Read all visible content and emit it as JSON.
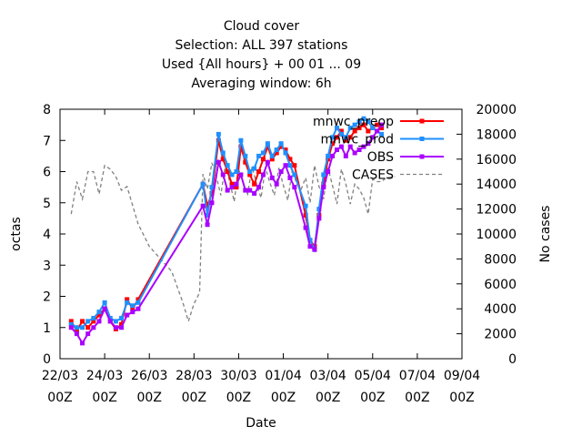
{
  "chart_data": {
    "type": "line",
    "title_lines": [
      "Cloud cover",
      "Selection: ALL    397 stations",
      "Used {All hours} + 00 01 ... 09",
      "Averaging window:  6h"
    ],
    "xlabel": "Date",
    "ylabel": "octas",
    "y2label": "No cases",
    "xlim": [
      0,
      18
    ],
    "ylim": [
      0,
      8
    ],
    "y2lim": [
      0,
      20000
    ],
    "x_ticks": [
      {
        "x": 0,
        "line1": "22/03",
        "line2": "00Z"
      },
      {
        "x": 2,
        "line1": "24/03",
        "line2": "00Z"
      },
      {
        "x": 4,
        "line1": "26/03",
        "line2": "00Z"
      },
      {
        "x": 6,
        "line1": "28/03",
        "line2": "00Z"
      },
      {
        "x": 8,
        "line1": "30/03",
        "line2": "00Z"
      },
      {
        "x": 10,
        "line1": "01/04",
        "line2": "00Z"
      },
      {
        "x": 12,
        "line1": "03/04",
        "line2": "00Z"
      },
      {
        "x": 14,
        "line1": "05/04",
        "line2": "00Z"
      },
      {
        "x": 16,
        "line1": "07/04",
        "line2": "00Z"
      },
      {
        "x": 18,
        "line1": "09/04",
        "line2": "00Z"
      }
    ],
    "y_ticks": [
      "0",
      "1",
      "2",
      "3",
      "4",
      "5",
      "6",
      "7",
      "8"
    ],
    "y2_ticks": [
      "0",
      "2000",
      "4000",
      "6000",
      "8000",
      "10000",
      "12000",
      "14000",
      "16000",
      "18000",
      "20000"
    ],
    "legend_position": "top-right",
    "series": [
      {
        "name": "mnwc_preop",
        "color": "#ff0000",
        "axis": "y1",
        "marker": "square",
        "points": [
          [
            0.5,
            1.2
          ],
          [
            0.75,
            0.9
          ],
          [
            1.0,
            1.2
          ],
          [
            1.25,
            1.0
          ],
          [
            1.5,
            1.2
          ],
          [
            1.75,
            1.4
          ],
          [
            2.0,
            1.6
          ],
          [
            2.25,
            1.2
          ],
          [
            2.5,
            0.95
          ],
          [
            2.75,
            1.1
          ],
          [
            3.0,
            1.9
          ],
          [
            3.25,
            1.6
          ],
          [
            3.5,
            1.9
          ],
          [
            6.4,
            5.6
          ],
          [
            6.6,
            4.9
          ],
          [
            6.8,
            5.3
          ],
          [
            7.1,
            7.0
          ],
          [
            7.3,
            6.4
          ],
          [
            7.5,
            6.0
          ],
          [
            7.7,
            5.6
          ],
          [
            7.9,
            5.5
          ],
          [
            8.1,
            6.8
          ],
          [
            8.3,
            6.3
          ],
          [
            8.5,
            5.9
          ],
          [
            8.7,
            5.6
          ],
          [
            8.9,
            6.0
          ],
          [
            9.1,
            6.4
          ],
          [
            9.3,
            6.8
          ],
          [
            9.5,
            6.4
          ],
          [
            9.7,
            6.6
          ],
          [
            9.9,
            6.8
          ],
          [
            10.1,
            6.7
          ],
          [
            10.3,
            6.4
          ],
          [
            10.5,
            6.2
          ],
          [
            11.0,
            4.6
          ],
          [
            11.2,
            3.8
          ],
          [
            11.4,
            3.6
          ],
          [
            11.6,
            4.6
          ],
          [
            11.8,
            5.6
          ],
          [
            12.0,
            6.4
          ],
          [
            12.2,
            6.9
          ],
          [
            12.4,
            7.1
          ],
          [
            12.6,
            7.3
          ],
          [
            12.8,
            7.0
          ],
          [
            13.0,
            7.1
          ],
          [
            13.2,
            7.3
          ],
          [
            13.4,
            7.4
          ],
          [
            13.6,
            7.5
          ],
          [
            13.8,
            7.3
          ],
          [
            14.0,
            7.4
          ],
          [
            14.2,
            7.5
          ],
          [
            14.4,
            7.4
          ]
        ]
      },
      {
        "name": "mnwc_prod",
        "color": "#1e90ff",
        "axis": "y1",
        "marker": "square",
        "points": [
          [
            0.5,
            1.1
          ],
          [
            0.75,
            1.0
          ],
          [
            1.0,
            1.0
          ],
          [
            1.25,
            1.2
          ],
          [
            1.5,
            1.3
          ],
          [
            1.75,
            1.5
          ],
          [
            2.0,
            1.8
          ],
          [
            2.25,
            1.3
          ],
          [
            2.5,
            1.2
          ],
          [
            2.75,
            1.3
          ],
          [
            3.0,
            1.8
          ],
          [
            3.25,
            1.7
          ],
          [
            3.5,
            1.8
          ],
          [
            6.4,
            5.6
          ],
          [
            6.6,
            4.6
          ],
          [
            6.8,
            5.5
          ],
          [
            7.1,
            7.2
          ],
          [
            7.3,
            6.6
          ],
          [
            7.5,
            6.2
          ],
          [
            7.7,
            5.9
          ],
          [
            7.9,
            6.0
          ],
          [
            8.1,
            7.0
          ],
          [
            8.3,
            6.5
          ],
          [
            8.5,
            6.0
          ],
          [
            8.7,
            6.1
          ],
          [
            8.9,
            6.5
          ],
          [
            9.1,
            6.6
          ],
          [
            9.3,
            6.9
          ],
          [
            9.5,
            6.5
          ],
          [
            9.7,
            6.7
          ],
          [
            9.9,
            6.9
          ],
          [
            10.1,
            6.6
          ],
          [
            10.3,
            6.2
          ],
          [
            10.5,
            5.9
          ],
          [
            11.0,
            4.9
          ],
          [
            11.2,
            3.8
          ],
          [
            11.4,
            3.5
          ],
          [
            11.6,
            4.8
          ],
          [
            11.8,
            5.9
          ],
          [
            12.0,
            6.5
          ],
          [
            12.2,
            7.1
          ],
          [
            12.4,
            7.4
          ],
          [
            12.6,
            7.2
          ],
          [
            12.8,
            7.1
          ],
          [
            13.0,
            7.4
          ],
          [
            13.2,
            7.5
          ],
          [
            13.4,
            7.6
          ],
          [
            13.6,
            7.7
          ],
          [
            13.8,
            7.6
          ],
          [
            14.0,
            7.4
          ],
          [
            14.2,
            7.3
          ],
          [
            14.4,
            7.2
          ]
        ]
      },
      {
        "name": "OBS",
        "color": "#aa00ff",
        "axis": "y1",
        "marker": "square",
        "points": [
          [
            0.5,
            1.0
          ],
          [
            0.75,
            0.8
          ],
          [
            1.0,
            0.5
          ],
          [
            1.25,
            0.8
          ],
          [
            1.5,
            1.0
          ],
          [
            1.75,
            1.2
          ],
          [
            2.0,
            1.6
          ],
          [
            2.25,
            1.2
          ],
          [
            2.5,
            1.0
          ],
          [
            2.75,
            1.0
          ],
          [
            3.0,
            1.4
          ],
          [
            3.25,
            1.5
          ],
          [
            3.5,
            1.6
          ],
          [
            6.4,
            4.9
          ],
          [
            6.6,
            4.3
          ],
          [
            6.8,
            5.0
          ],
          [
            7.1,
            6.3
          ],
          [
            7.3,
            5.9
          ],
          [
            7.5,
            5.4
          ],
          [
            7.7,
            5.5
          ],
          [
            7.9,
            5.6
          ],
          [
            8.1,
            5.9
          ],
          [
            8.3,
            5.4
          ],
          [
            8.5,
            5.4
          ],
          [
            8.7,
            5.3
          ],
          [
            8.9,
            5.5
          ],
          [
            9.1,
            5.9
          ],
          [
            9.3,
            6.3
          ],
          [
            9.5,
            5.8
          ],
          [
            9.7,
            5.6
          ],
          [
            9.9,
            6.0
          ],
          [
            10.1,
            6.2
          ],
          [
            10.3,
            5.8
          ],
          [
            10.5,
            5.5
          ],
          [
            11.0,
            4.2
          ],
          [
            11.2,
            3.6
          ],
          [
            11.4,
            3.5
          ],
          [
            11.6,
            4.5
          ],
          [
            11.8,
            5.5
          ],
          [
            12.0,
            6.0
          ],
          [
            12.2,
            6.5
          ],
          [
            12.4,
            6.7
          ],
          [
            12.6,
            6.8
          ],
          [
            12.8,
            6.5
          ],
          [
            13.0,
            6.8
          ],
          [
            13.2,
            6.6
          ],
          [
            13.4,
            6.7
          ],
          [
            13.6,
            6.8
          ],
          [
            13.8,
            6.9
          ],
          [
            14.0,
            7.1
          ],
          [
            14.2,
            7.3
          ],
          [
            14.4,
            7.5
          ]
        ]
      },
      {
        "name": "CASES",
        "color": "#808080",
        "axis": "y2",
        "dashed": true,
        "points": [
          [
            0.5,
            11600
          ],
          [
            0.75,
            14200
          ],
          [
            1.0,
            12800
          ],
          [
            1.25,
            15000
          ],
          [
            1.5,
            15000
          ],
          [
            1.75,
            13200
          ],
          [
            2.0,
            15500
          ],
          [
            2.25,
            15200
          ],
          [
            2.5,
            14600
          ],
          [
            2.75,
            13500
          ],
          [
            3.0,
            13800
          ],
          [
            3.5,
            10800
          ],
          [
            4.0,
            9000
          ],
          [
            5.0,
            7000
          ],
          [
            5.5,
            4500
          ],
          [
            5.75,
            3000
          ],
          [
            6.0,
            4400
          ],
          [
            6.25,
            5300
          ],
          [
            6.4,
            14800
          ],
          [
            6.6,
            13600
          ],
          [
            6.8,
            15700
          ],
          [
            7.0,
            14600
          ],
          [
            7.2,
            13100
          ],
          [
            7.4,
            15500
          ],
          [
            7.6,
            14200
          ],
          [
            7.8,
            12600
          ],
          [
            8.0,
            15200
          ],
          [
            8.2,
            14100
          ],
          [
            8.4,
            13200
          ],
          [
            8.6,
            15400
          ],
          [
            8.8,
            14000
          ],
          [
            9.0,
            12900
          ],
          [
            9.2,
            15300
          ],
          [
            9.4,
            14100
          ],
          [
            9.6,
            13100
          ],
          [
            9.8,
            15300
          ],
          [
            10.0,
            13900
          ],
          [
            10.2,
            12700
          ],
          [
            10.4,
            15200
          ],
          [
            10.6,
            14000
          ],
          [
            10.8,
            13600
          ],
          [
            11.0,
            14500
          ],
          [
            11.2,
            12500
          ],
          [
            11.4,
            15500
          ],
          [
            11.6,
            13800
          ],
          [
            11.8,
            12800
          ],
          [
            12.0,
            15300
          ],
          [
            12.2,
            13900
          ],
          [
            12.4,
            12400
          ],
          [
            12.6,
            15200
          ],
          [
            12.8,
            14000
          ],
          [
            13.0,
            12400
          ],
          [
            13.2,
            14000
          ],
          [
            13.4,
            13600
          ],
          [
            13.6,
            12900
          ],
          [
            13.8,
            11600
          ],
          [
            14.0,
            14400
          ],
          [
            14.2,
            14200
          ],
          [
            14.4,
            14200
          ],
          [
            14.6,
            14500
          ],
          [
            15.0,
            14600
          ]
        ]
      }
    ]
  }
}
